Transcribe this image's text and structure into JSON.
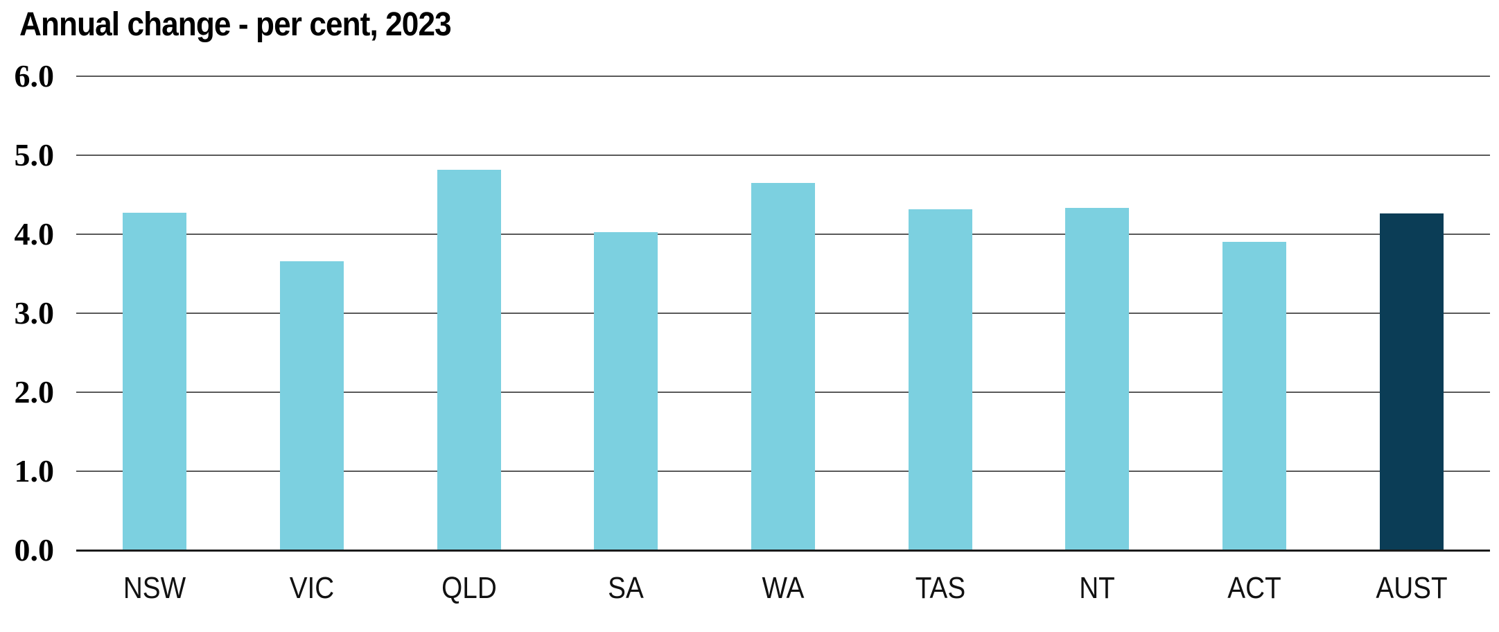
{
  "chart_data": {
    "type": "bar",
    "title": "Annual change - per cent, 2023",
    "categories": [
      "NSW",
      "VIC",
      "QLD",
      "SA",
      "WA",
      "TAS",
      "NT",
      "ACT",
      "AUST"
    ],
    "values": [
      4.27,
      3.66,
      4.82,
      4.03,
      4.65,
      4.32,
      4.33,
      3.9,
      4.26
    ],
    "xlabel": "",
    "ylabel": "",
    "ylim": [
      0,
      6
    ],
    "ytick_interval": 1.0,
    "yticks": [
      {
        "label": "6.0",
        "value": 6
      },
      {
        "label": "5.0",
        "value": 5
      },
      {
        "label": "4.0",
        "value": 4
      },
      {
        "label": "3.0",
        "value": 3
      },
      {
        "label": "2.0",
        "value": 2
      },
      {
        "label": "1.0",
        "value": 1
      },
      {
        "label": "0.0",
        "value": 0
      }
    ],
    "grid": true,
    "legend_position": "none",
    "highlight_category": "AUST",
    "colors": {
      "bar": "#7CD0E0",
      "highlight_bar": "#0B3D56",
      "gridline": "#595959",
      "axis_line": "#1A1A1A",
      "background": "#FFFFFF",
      "text": "#000000"
    }
  }
}
